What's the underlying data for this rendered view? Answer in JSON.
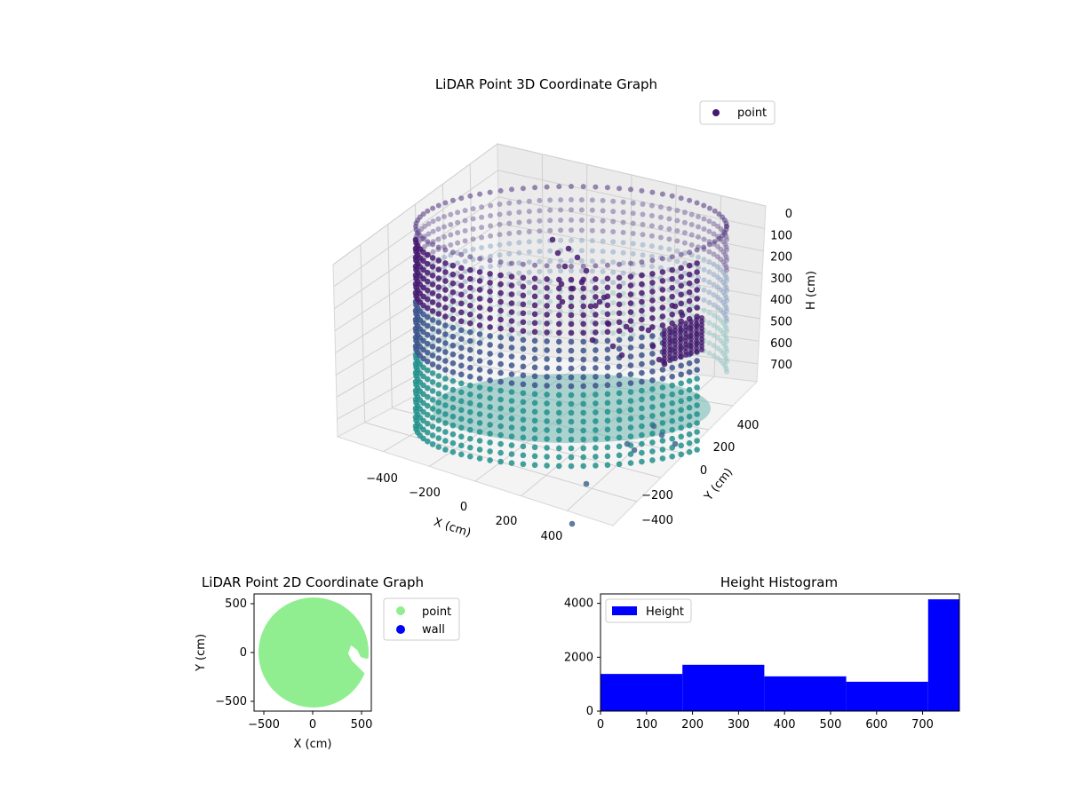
{
  "chart_data": [
    {
      "type": "scatter",
      "projection": "3d",
      "title": "LiDAR Point 3D Coordinate Graph",
      "xlabel": "X (cm)",
      "ylabel": "Y (cm)",
      "zlabel": "H (cm)",
      "xlim": [
        -550,
        550
      ],
      "ylim": [
        -550,
        550
      ],
      "zlim": [
        780,
        0
      ],
      "xticks": [
        "−400",
        "−200",
        "0",
        "200",
        "400"
      ],
      "yticks": [
        "−400",
        "−200",
        "0",
        "200",
        "400"
      ],
      "zticks": [
        "0",
        "100",
        "200",
        "300",
        "400",
        "500",
        "600",
        "700"
      ],
      "zaxis_inverted": true,
      "colormap": "viridis (by height)",
      "series": [
        {
          "name": "point",
          "color": "#46196e"
        }
      ],
      "legend_position": "top-right",
      "grid": true,
      "shape": "cylindrical wall of radius ~500 cm, full height 0–780 cm, with an open section on the +X side"
    },
    {
      "type": "scatter",
      "title": "LiDAR Point 2D Coordinate Graph",
      "xlabel": "X (cm)",
      "ylabel": "Y (cm)",
      "xlim": [
        -600,
        600
      ],
      "ylim": [
        -600,
        600
      ],
      "xticks": [
        "−500",
        "0",
        "500"
      ],
      "yticks": [
        "500",
        "0",
        "−500"
      ],
      "series": [
        {
          "name": "point",
          "color": "#90ee90"
        },
        {
          "name": "wall",
          "color": "#0000ff"
        }
      ],
      "legend_position": "outside-right",
      "shape": "filled disc of radius ~560 cm with a small notch near x≈450, y≈0"
    },
    {
      "type": "bar",
      "histogram": true,
      "title": "Height Histogram",
      "bin_edges": [
        0,
        178,
        356,
        534,
        712,
        780
      ],
      "values": [
        1380,
        1720,
        1290,
        1090,
        4150
      ],
      "xlim": [
        0,
        780
      ],
      "ylim": [
        0,
        4350
      ],
      "xticks": [
        "0",
        "100",
        "200",
        "300",
        "400",
        "500",
        "600",
        "700"
      ],
      "yticks": [
        "0",
        "2000",
        "4000"
      ],
      "series": [
        {
          "name": "Height",
          "color": "#0000ff"
        }
      ],
      "legend_position": "upper-left"
    }
  ]
}
